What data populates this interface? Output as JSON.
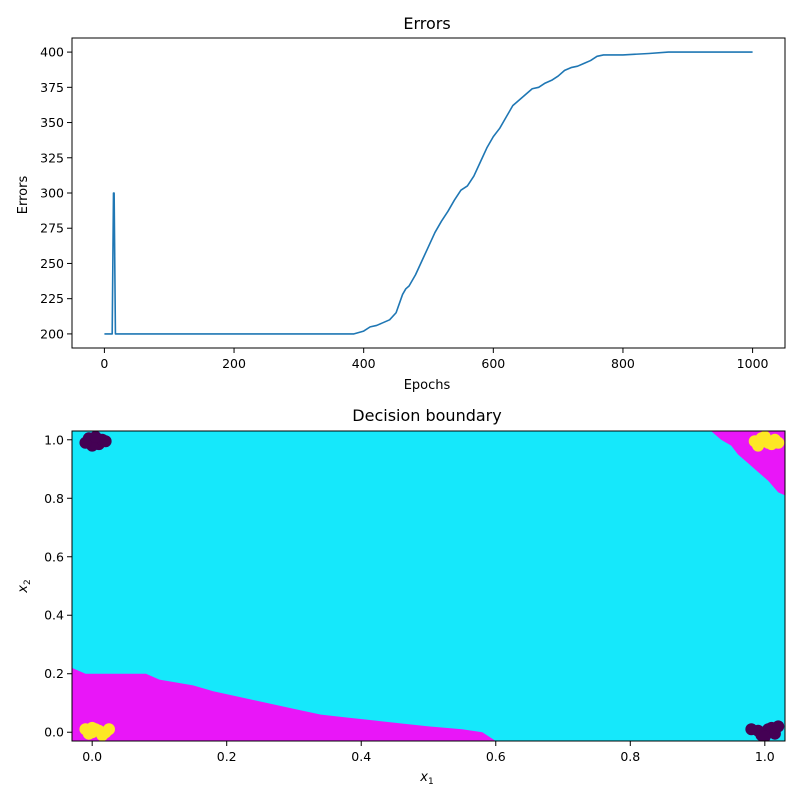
{
  "chart_data": [
    {
      "type": "line",
      "title": "Errors",
      "xlabel": "Epochs",
      "ylabel": "Errors",
      "xlim": [
        -50,
        1050
      ],
      "ylim": [
        190,
        410
      ],
      "xticks": [
        0,
        200,
        400,
        600,
        800,
        1000
      ],
      "yticks": [
        200,
        225,
        250,
        275,
        300,
        325,
        350,
        375,
        400
      ],
      "grid": false,
      "color": "#1f77b4",
      "series": [
        {
          "x": [
            0,
            12,
            13,
            14,
            15,
            16,
            17,
            385,
            400,
            410,
            420,
            440,
            450,
            460,
            465,
            470,
            480,
            490,
            500,
            510,
            520,
            530,
            540,
            550,
            560,
            570,
            580,
            590,
            600,
            610,
            620,
            630,
            640,
            650,
            660,
            670,
            680,
            690,
            700,
            710,
            720,
            730,
            740,
            750,
            760,
            770,
            800,
            840,
            870,
            1000
          ],
          "y": [
            200,
            200,
            250,
            300,
            300,
            250,
            200,
            200,
            202,
            205,
            206,
            210,
            215,
            228,
            232,
            234,
            242,
            252,
            262,
            272,
            280,
            287,
            295,
            302,
            305,
            312,
            322,
            332,
            340,
            346,
            354,
            362,
            366,
            370,
            374,
            375,
            378,
            380,
            383,
            387,
            389,
            390,
            392,
            394,
            397,
            398,
            398,
            399,
            400,
            400
          ]
        }
      ]
    },
    {
      "type": "heatmap",
      "title": "Decision boundary",
      "xlabel": "x",
      "xlabel_sub": "1",
      "ylabel": "x",
      "ylabel_sub": "2",
      "xlim": [
        -0.03,
        1.03
      ],
      "ylim": [
        -0.03,
        1.03
      ],
      "xticks": [
        0.0,
        0.2,
        0.4,
        0.6,
        0.8,
        1.0
      ],
      "yticks": [
        0.0,
        0.2,
        0.4,
        0.6,
        0.8,
        1.0
      ],
      "region_colors": {
        "background": "#15e8fb",
        "class_region": "#e916f8"
      },
      "regions": [
        {
          "name": "lower-left",
          "boundary": [
            [
              -0.03,
              0.22
            ],
            [
              -0.01,
              0.2
            ],
            [
              0.08,
              0.2
            ],
            [
              0.1,
              0.18
            ],
            [
              0.15,
              0.16
            ],
            [
              0.18,
              0.14
            ],
            [
              0.22,
              0.12
            ],
            [
              0.26,
              0.1
            ],
            [
              0.3,
              0.08
            ],
            [
              0.34,
              0.06
            ],
            [
              0.38,
              0.05
            ],
            [
              0.42,
              0.04
            ],
            [
              0.46,
              0.03
            ],
            [
              0.5,
              0.02
            ],
            [
              0.55,
              0.01
            ],
            [
              0.58,
              0.0
            ],
            [
              0.6,
              -0.03
            ],
            [
              -0.03,
              -0.03
            ]
          ]
        },
        {
          "name": "upper-right",
          "boundary": [
            [
              0.92,
              1.03
            ],
            [
              0.935,
              1.0
            ],
            [
              0.95,
              0.98
            ],
            [
              0.96,
              0.95
            ],
            [
              0.975,
              0.92
            ],
            [
              0.99,
              0.89
            ],
            [
              1.005,
              0.86
            ],
            [
              1.02,
              0.82
            ],
            [
              1.03,
              0.81
            ],
            [
              1.03,
              1.03
            ]
          ]
        }
      ],
      "point_colors": {
        "class_0": "#440154",
        "class_1": "#fde725"
      },
      "points": [
        {
          "class": "class_0",
          "x": [
            0.0,
            0.005,
            -0.005,
            0.01,
            0.0,
            -0.01,
            0.015,
            0.005,
            0.02
          ],
          "y": [
            1.0,
            0.99,
            1.005,
            0.985,
            0.98,
            0.99,
            1.0,
            1.01,
            0.995
          ]
        },
        {
          "class": "class_1",
          "x": [
            0.0,
            0.005,
            -0.005,
            0.01,
            0.0,
            -0.01,
            0.015,
            0.02,
            0.025
          ],
          "y": [
            0.0,
            0.01,
            -0.005,
            0.005,
            0.015,
            0.01,
            -0.01,
            0.0,
            0.01
          ]
        },
        {
          "class": "class_1",
          "x": [
            1.0,
            1.005,
            0.995,
            1.01,
            0.99,
            1.015,
            1.0,
            0.985,
            1.02
          ],
          "y": [
            1.0,
            0.99,
            1.005,
            0.985,
            0.98,
            1.0,
            1.01,
            0.995,
            0.99
          ]
        },
        {
          "class": "class_0",
          "x": [
            1.0,
            1.005,
            0.995,
            1.01,
            0.99,
            1.015,
            0.98,
            1.02,
            1.0
          ],
          "y": [
            0.0,
            0.01,
            -0.01,
            0.015,
            0.005,
            -0.005,
            0.01,
            0.02,
            -0.015
          ]
        }
      ]
    }
  ]
}
